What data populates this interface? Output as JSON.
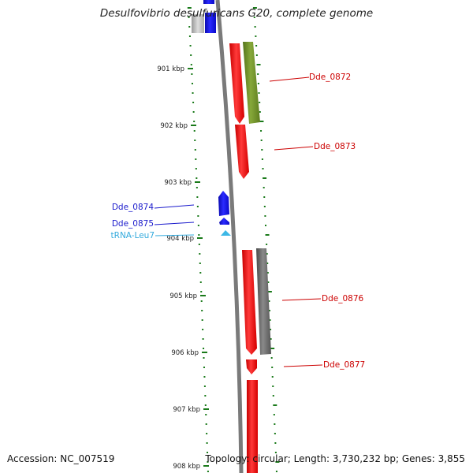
{
  "title": "Desulfovibrio desulfuricans G20, complete genome",
  "footer": {
    "accession": "Accession: NC_007519",
    "topology": "Topology: circular; Length: 3,730,232 bp; Genes: 3,855"
  },
  "ticks": [
    "901 kbp",
    "902 kbp",
    "903 kbp",
    "904 kbp",
    "905 kbp",
    "906 kbp",
    "907 kbp",
    "908 kbp"
  ],
  "gene_labels": {
    "dde_0872": "Dde_0872",
    "dde_0873": "Dde_0873",
    "dde_0874": "Dde_0874",
    "dde_0875": "Dde_0875",
    "trna_leu7": "tRNA-Leu7",
    "dde_0876": "Dde_0876",
    "dde_0877": "Dde_0877"
  },
  "colors": {
    "forward_gene": "#ff1a1a",
    "reverse_gene": "#1414e6",
    "trna": "#3cb8e6",
    "homolog_green": "#6b8e23",
    "homolog_gray": "#666666",
    "label_red": "#cc0000",
    "label_blue": "#1a1acc",
    "label_cyan": "#33aadd",
    "tick_green": "#1a7a1a",
    "backbone": "#7a7a7a"
  }
}
